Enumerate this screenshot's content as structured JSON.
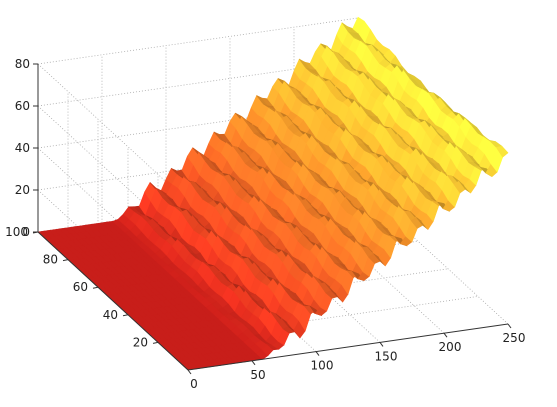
{
  "chart_data": {
    "type": "surface",
    "title": "",
    "xlabel": "",
    "ylabel": "",
    "zlabel": "",
    "grid": true,
    "colormap": [
      "#c81e1a",
      "#d24a1f",
      "#dd7a24",
      "#e7ad2c",
      "#e9d836"
    ],
    "xlim": [
      0,
      250
    ],
    "ylim": [
      0,
      100
    ],
    "zlim": [
      0,
      80
    ],
    "x_ticks": [
      0,
      50,
      100,
      150,
      200,
      250
    ],
    "y_ticks": [
      20,
      40,
      60,
      80,
      100
    ],
    "z_ticks": [
      0,
      20,
      40,
      60,
      80
    ],
    "flat_region_x": [
      0,
      60
    ],
    "flat_height": 0,
    "ramp_slope": 0.42,
    "ridge_count": 15,
    "ridge_amplitude": 3.5,
    "max_height": 82
  }
}
